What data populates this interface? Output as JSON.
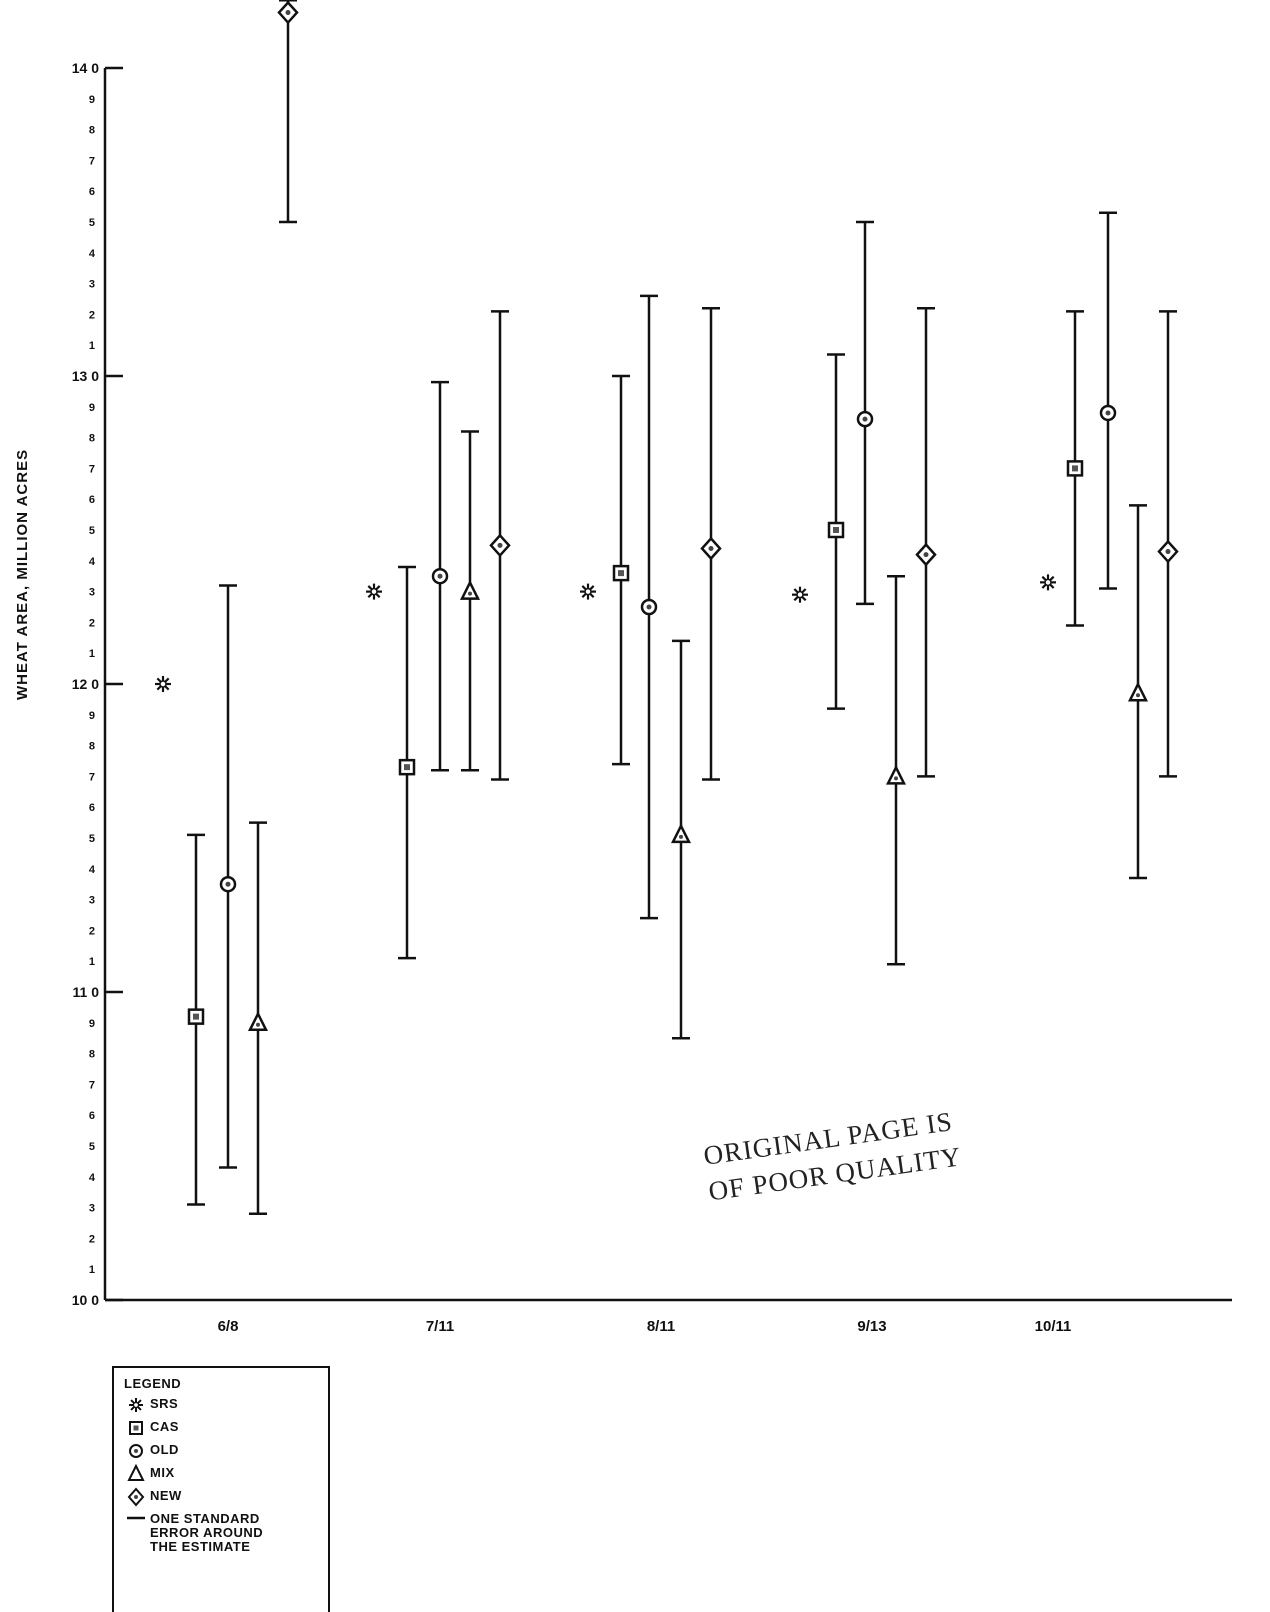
{
  "chart_data": {
    "type": "scatter",
    "ylabel": "WHEAT AREA, MILLION ACRES",
    "xlabel": "",
    "title": "",
    "ylim": [
      100,
      140
    ],
    "y_major_ticks": [
      {
        "value": 100,
        "label": "10 0"
      },
      {
        "value": 110,
        "label": "11 0"
      },
      {
        "value": 120,
        "label": "12 0"
      },
      {
        "value": 130,
        "label": "13 0"
      },
      {
        "value": 140,
        "label": "14 0"
      }
    ],
    "y_minor_labels": [
      "1",
      "2",
      "3",
      "4",
      "5",
      "6",
      "7",
      "8",
      "9"
    ],
    "categories": [
      "6/8",
      "7/11",
      "8/11",
      "9/13",
      "10/11"
    ],
    "series": [
      {
        "name": "SRS",
        "symbol": "asterisk",
        "points": [
          {
            "category": "6/8",
            "y": 120.0
          },
          {
            "category": "7/11",
            "y": 123.0
          },
          {
            "category": "8/11",
            "y": 123.0
          },
          {
            "category": "9/13",
            "y": 122.9
          },
          {
            "category": "10/11",
            "y": 123.3
          }
        ]
      },
      {
        "name": "CAS",
        "symbol": "square",
        "points": [
          {
            "category": "6/8",
            "y": 109.2,
            "low": 103.1,
            "high": 115.1
          },
          {
            "category": "7/11",
            "y": 117.3,
            "low": 111.1,
            "high": 123.8
          },
          {
            "category": "8/11",
            "y": 123.6,
            "low": 117.4,
            "high": 130.0
          },
          {
            "category": "9/13",
            "y": 125.0,
            "low": 119.2,
            "high": 130.7
          },
          {
            "category": "10/11",
            "y": 127.0,
            "low": 121.9,
            "high": 132.1
          }
        ]
      },
      {
        "name": "OLD",
        "symbol": "circle",
        "points": [
          {
            "category": "6/8",
            "y": 113.5,
            "low": 104.3,
            "high": 123.2
          },
          {
            "category": "7/11",
            "y": 123.5,
            "low": 117.2,
            "high": 129.8
          },
          {
            "category": "8/11",
            "y": 122.5,
            "low": 112.4,
            "high": 132.6
          },
          {
            "category": "9/13",
            "y": 128.6,
            "low": 122.6,
            "high": 135.0
          },
          {
            "category": "10/11",
            "y": 128.8,
            "low": 123.1,
            "high": 135.3
          }
        ]
      },
      {
        "name": "MIX",
        "symbol": "triangle",
        "points": [
          {
            "category": "6/8",
            "y": 109.0,
            "low": 102.8,
            "high": 115.5
          },
          {
            "category": "7/11",
            "y": 123.0,
            "low": 117.2,
            "high": 128.2
          },
          {
            "category": "8/11",
            "y": 115.1,
            "low": 108.5,
            "high": 121.4
          },
          {
            "category": "9/13",
            "y": 117.0,
            "low": 110.9,
            "high": 123.5
          },
          {
            "category": "10/11",
            "y": 119.7,
            "low": 113.7,
            "high": 125.8
          }
        ]
      },
      {
        "name": "NEW",
        "symbol": "diamond",
        "points": [
          {
            "category": "6/8",
            "y": 141.8,
            "low": 135.0,
            "high": 142.2
          },
          {
            "category": "7/11",
            "y": 124.5,
            "low": 116.9,
            "high": 132.1
          },
          {
            "category": "8/11",
            "y": 124.4,
            "low": 116.9,
            "high": 132.2
          },
          {
            "category": "9/13",
            "y": 124.2,
            "low": 117.0,
            "high": 132.2
          },
          {
            "category": "10/11",
            "y": 124.3,
            "low": 117.0,
            "high": 132.1
          }
        ]
      }
    ],
    "legend": {
      "title": "LEGEND",
      "placement": "bottom-left",
      "error_bar_label": "ONE STANDARD ERROR AROUND THE ESTIMATE"
    },
    "grid": false
  },
  "stamp": {
    "line1": "ORIGINAL PAGE IS",
    "line2": "OF POOR QUALITY"
  }
}
